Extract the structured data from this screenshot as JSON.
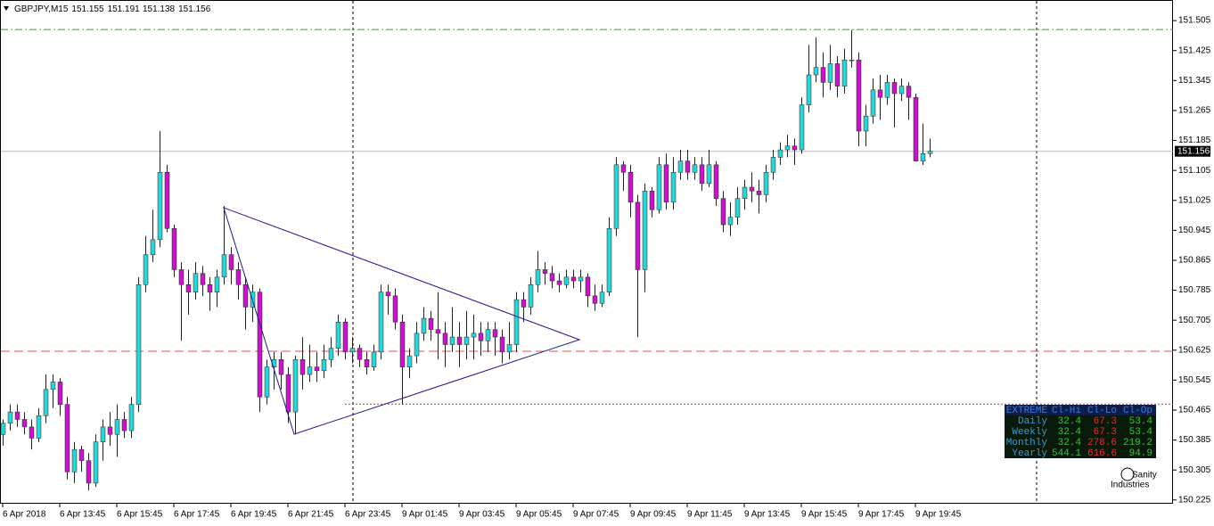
{
  "chart_data": {
    "type": "candlestick",
    "title": "GBPJPY,M15",
    "header_values": [
      151.155,
      151.191,
      151.138,
      151.156
    ],
    "current_price": 151.156,
    "up_color": "#20d8d8",
    "down_color": "#d010d0",
    "ylim": [
      150.215,
      151.56
    ],
    "yticks": [
      151.505,
      151.425,
      151.345,
      151.265,
      151.185,
      151.105,
      151.025,
      150.945,
      150.865,
      150.785,
      150.705,
      150.625,
      150.545,
      150.465,
      150.385,
      150.305,
      150.225
    ],
    "levels": [
      {
        "value": 151.481,
        "color": "#2ca02c",
        "style": "dashdot"
      },
      {
        "value": 150.622,
        "color": "#e05050",
        "style": "dashed"
      },
      {
        "value": 150.481,
        "color": "#d03030",
        "style": "dotted"
      }
    ],
    "categories": [
      "6 Apr 2018",
      null,
      null,
      null,
      null,
      null,
      null,
      null,
      "6 Apr 13:45",
      null,
      null,
      null,
      null,
      null,
      null,
      null,
      "6 Apr 15:45",
      null,
      null,
      null,
      null,
      null,
      null,
      null,
      "6 Apr 17:45",
      null,
      null,
      null,
      null,
      null,
      null,
      null,
      "6 Apr 19:45",
      null,
      null,
      null,
      null,
      null,
      null,
      null,
      "6 Apr 21:45",
      null,
      null,
      null,
      null,
      null,
      null,
      null,
      "6 Apr 23:45",
      null,
      null,
      null,
      null,
      null,
      null,
      null,
      "9 Apr 01:45",
      null,
      null,
      null,
      null,
      null,
      null,
      null,
      "9 Apr 03:45",
      null,
      null,
      null,
      null,
      null,
      null,
      null,
      "9 Apr 05:45",
      null,
      null,
      null,
      null,
      null,
      null,
      null,
      "9 Apr 07:45",
      null,
      null,
      null,
      null,
      null,
      null,
      null,
      "9 Apr 09:45",
      null,
      null,
      null,
      null,
      null,
      null,
      null,
      "9 Apr 11:45",
      null,
      null,
      null,
      null,
      null,
      null,
      null,
      "9 Apr 13:45",
      null,
      null,
      null,
      null,
      null,
      null,
      null,
      "9 Apr 15:45",
      null,
      null,
      null,
      null,
      null,
      null,
      null,
      "9 Apr 17:45",
      null,
      null,
      null,
      null,
      null,
      null,
      null,
      "9 Apr 19:45",
      null,
      null
    ],
    "ohlc": [
      [
        150.4,
        150.44,
        150.37,
        150.43
      ],
      [
        150.43,
        150.48,
        150.41,
        150.46
      ],
      [
        150.46,
        150.48,
        150.42,
        150.44
      ],
      [
        150.44,
        150.46,
        150.4,
        150.42
      ],
      [
        150.42,
        150.44,
        150.36,
        150.39
      ],
      [
        150.39,
        150.47,
        150.38,
        150.45
      ],
      [
        150.45,
        150.56,
        150.43,
        150.52
      ],
      [
        150.52,
        150.56,
        150.47,
        150.54
      ],
      [
        150.54,
        150.55,
        150.45,
        150.48
      ],
      [
        150.48,
        150.5,
        150.28,
        150.3
      ],
      [
        150.3,
        150.38,
        150.27,
        150.36
      ],
      [
        150.36,
        150.37,
        150.3,
        150.33
      ],
      [
        150.33,
        150.35,
        150.25,
        150.27
      ],
      [
        150.27,
        150.4,
        150.26,
        150.38
      ],
      [
        150.38,
        150.44,
        150.33,
        150.42
      ],
      [
        150.42,
        150.46,
        150.37,
        150.4
      ],
      [
        150.4,
        150.48,
        150.34,
        150.44
      ],
      [
        150.44,
        150.46,
        150.39,
        150.41
      ],
      [
        150.41,
        150.5,
        150.39,
        150.48
      ],
      [
        150.48,
        150.82,
        150.46,
        150.8
      ],
      [
        150.8,
        150.93,
        150.78,
        150.88
      ],
      [
        150.88,
        151.0,
        150.86,
        150.92
      ],
      [
        150.92,
        151.21,
        150.9,
        151.1
      ],
      [
        151.1,
        151.12,
        150.94,
        150.95
      ],
      [
        150.95,
        150.96,
        150.82,
        150.84
      ],
      [
        150.84,
        150.86,
        150.65,
        150.8
      ],
      [
        150.8,
        150.84,
        150.72,
        150.78
      ],
      [
        150.78,
        150.86,
        150.76,
        150.83
      ],
      [
        150.83,
        150.85,
        150.77,
        150.8
      ],
      [
        150.8,
        150.82,
        150.73,
        150.78
      ],
      [
        150.78,
        150.84,
        150.74,
        150.82
      ],
      [
        150.82,
        151.01,
        150.8,
        150.88
      ],
      [
        150.88,
        150.9,
        150.8,
        150.84
      ],
      [
        150.84,
        150.86,
        150.76,
        150.8
      ],
      [
        150.8,
        150.82,
        150.68,
        150.74
      ],
      [
        150.74,
        150.8,
        150.7,
        150.78
      ],
      [
        150.78,
        150.79,
        150.46,
        150.5
      ],
      [
        150.5,
        150.6,
        150.48,
        150.58
      ],
      [
        150.58,
        150.62,
        150.52,
        150.6
      ],
      [
        150.6,
        150.62,
        150.52,
        150.56
      ],
      [
        150.56,
        150.58,
        150.43,
        150.46
      ],
      [
        150.46,
        150.61,
        150.4,
        150.6
      ],
      [
        150.6,
        150.66,
        150.52,
        150.56
      ],
      [
        150.56,
        150.64,
        150.54,
        150.58
      ],
      [
        150.58,
        150.62,
        150.54,
        150.57
      ],
      [
        150.57,
        150.64,
        150.55,
        150.6
      ],
      [
        150.6,
        150.66,
        150.58,
        150.63
      ],
      [
        150.63,
        150.72,
        150.61,
        150.7
      ],
      [
        150.7,
        150.71,
        150.6,
        150.62
      ],
      [
        150.62,
        150.66,
        150.59,
        150.63
      ],
      [
        150.63,
        150.64,
        150.58,
        150.6
      ],
      [
        150.6,
        150.62,
        150.56,
        150.58
      ],
      [
        150.58,
        150.64,
        150.57,
        150.62
      ],
      [
        150.62,
        150.8,
        150.6,
        150.78
      ],
      [
        150.78,
        150.8,
        150.72,
        150.77
      ],
      [
        150.77,
        150.79,
        150.68,
        150.7
      ],
      [
        150.7,
        150.72,
        150.48,
        150.58
      ],
      [
        150.58,
        150.63,
        150.55,
        150.61
      ],
      [
        150.61,
        150.7,
        150.59,
        150.67
      ],
      [
        150.67,
        150.74,
        150.65,
        150.71
      ],
      [
        150.71,
        150.73,
        150.65,
        150.68
      ],
      [
        150.68,
        150.78,
        150.6,
        150.67
      ],
      [
        150.67,
        150.7,
        150.58,
        150.64
      ],
      [
        150.64,
        150.74,
        150.62,
        150.66
      ],
      [
        150.66,
        150.7,
        150.58,
        150.64
      ],
      [
        150.64,
        150.73,
        150.6,
        150.66
      ],
      [
        150.66,
        150.72,
        150.6,
        150.67
      ],
      [
        150.67,
        150.7,
        150.61,
        150.65
      ],
      [
        150.65,
        150.7,
        150.62,
        150.68
      ],
      [
        150.68,
        150.7,
        150.61,
        150.66
      ],
      [
        150.66,
        150.68,
        150.59,
        150.62
      ],
      [
        150.62,
        150.7,
        150.6,
        150.64
      ],
      [
        150.64,
        150.78,
        150.62,
        150.76
      ],
      [
        150.76,
        150.78,
        150.7,
        150.74
      ],
      [
        150.74,
        150.82,
        150.72,
        150.8
      ],
      [
        150.8,
        150.89,
        150.78,
        150.84
      ],
      [
        150.84,
        150.86,
        150.8,
        150.83
      ],
      [
        150.83,
        150.85,
        150.79,
        150.81
      ],
      [
        150.81,
        150.83,
        150.78,
        150.8
      ],
      [
        150.8,
        150.84,
        150.79,
        150.82
      ],
      [
        150.82,
        150.84,
        150.79,
        150.81
      ],
      [
        150.81,
        150.84,
        150.78,
        150.82
      ],
      [
        150.82,
        150.83,
        150.74,
        150.77
      ],
      [
        150.77,
        150.8,
        150.73,
        150.75
      ],
      [
        150.75,
        150.8,
        150.74,
        150.78
      ],
      [
        150.78,
        150.98,
        150.77,
        150.95
      ],
      [
        150.95,
        151.14,
        150.93,
        151.12
      ],
      [
        151.12,
        151.13,
        151.05,
        151.1
      ],
      [
        151.1,
        151.12,
        150.98,
        151.02
      ],
      [
        151.02,
        151.04,
        150.66,
        150.84
      ],
      [
        150.84,
        151.07,
        150.78,
        151.05
      ],
      [
        151.05,
        151.06,
        150.98,
        151.0
      ],
      [
        151.0,
        151.14,
        150.99,
        151.12
      ],
      [
        151.12,
        151.15,
        151.0,
        151.02
      ],
      [
        151.02,
        151.14,
        151.0,
        151.1
      ],
      [
        151.1,
        151.16,
        151.08,
        151.13
      ],
      [
        151.13,
        151.16,
        151.08,
        151.1
      ],
      [
        151.1,
        151.14,
        151.08,
        151.12
      ],
      [
        151.12,
        151.14,
        151.05,
        151.07
      ],
      [
        151.07,
        151.16,
        151.06,
        151.12
      ],
      [
        151.12,
        151.13,
        151.01,
        151.03
      ],
      [
        151.03,
        151.05,
        150.94,
        150.96
      ],
      [
        150.96,
        151.02,
        150.93,
        150.98
      ],
      [
        150.98,
        151.06,
        150.96,
        151.03
      ],
      [
        151.03,
        151.08,
        151.0,
        151.06
      ],
      [
        151.06,
        151.1,
        151.02,
        151.05
      ],
      [
        151.05,
        151.08,
        150.99,
        151.04
      ],
      [
        151.04,
        151.12,
        151.02,
        151.1
      ],
      [
        151.1,
        151.16,
        151.08,
        151.14
      ],
      [
        151.14,
        151.18,
        151.12,
        151.16
      ],
      [
        151.16,
        151.2,
        151.14,
        151.17
      ],
      [
        151.17,
        151.19,
        151.12,
        151.16
      ],
      [
        151.16,
        151.3,
        151.15,
        151.28
      ],
      [
        151.28,
        151.44,
        151.26,
        151.36
      ],
      [
        151.36,
        151.46,
        151.34,
        151.38
      ],
      [
        151.38,
        151.42,
        151.3,
        151.34
      ],
      [
        151.34,
        151.44,
        151.32,
        151.39
      ],
      [
        151.39,
        151.41,
        151.3,
        151.33
      ],
      [
        151.33,
        151.43,
        151.31,
        151.4
      ],
      [
        151.4,
        151.48,
        151.38,
        151.4
      ],
      [
        151.4,
        151.42,
        151.17,
        151.21
      ],
      [
        151.21,
        151.28,
        151.17,
        151.25
      ],
      [
        151.25,
        151.35,
        151.23,
        151.32
      ],
      [
        151.32,
        151.36,
        151.24,
        151.3
      ],
      [
        151.3,
        151.36,
        151.28,
        151.34
      ],
      [
        151.34,
        151.35,
        151.22,
        151.31
      ],
      [
        151.31,
        151.35,
        151.29,
        151.33
      ],
      [
        151.33,
        151.34,
        151.24,
        151.3
      ],
      [
        151.3,
        151.31,
        151.13,
        151.13
      ],
      [
        151.13,
        151.23,
        151.12,
        151.15
      ],
      [
        151.15,
        151.19,
        151.14,
        151.156
      ]
    ]
  },
  "table": {
    "header": [
      "EXTREME",
      "Cl-Hi",
      "Cl-Lo",
      "Cl-Op"
    ],
    "rows": [
      [
        "Daily",
        32.4,
        67.3,
        53.4
      ],
      [
        "Weekly",
        32.4,
        67.3,
        53.4
      ],
      [
        "Monthly",
        32.4,
        278.6,
        219.2
      ],
      [
        "Yearly",
        544.1,
        616.6,
        94.9
      ]
    ]
  },
  "logo": [
    "Sanity",
    "Industries"
  ]
}
